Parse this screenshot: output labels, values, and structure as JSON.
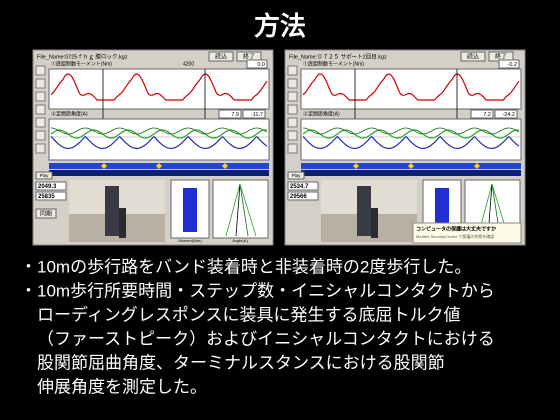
{
  "title": "方法",
  "screenshots": [
    {
      "file_name": "File_Name:0725ｆｈｇ 膝ロック.kgz",
      "load": "読込",
      "exit": "終了",
      "moment_label": "①底屈制動モーメント(Nm)",
      "moment_value": "4200",
      "moment_box": "0.0",
      "angle_label": "②足関節角度(A)",
      "angle_box_1": "7.9",
      "angle_box_2": "-11.7",
      "counter_1": "2049.3",
      "counter_2": "25835",
      "sync": "同期",
      "play": "Play",
      "moment_axis": "Moment(Nm)",
      "angle_axis": "Angle(A)"
    },
    {
      "file_name": "File_Name:０７２５ サポート2回目.kgz",
      "load": "読込",
      "exit": "終了",
      "moment_label": "①底屈制動モーメント(Nm)",
      "moment_box": "-0.2",
      "angle_label": "②足関節角度(A)",
      "angle_box_1": "7.2",
      "angle_box_2": "-24.2",
      "counter_1": "2534.7",
      "counter_2": "29566",
      "play": "Play",
      "popup_title": "コンピュータの保護は大丈夫ですか",
      "popup_text": "McAfee SecurityCenter で保護の状態を確認"
    }
  ],
  "bullets": [
    [
      "・10mの歩行路をバンド装着時と非装着時の2度歩行した。"
    ],
    [
      "・10m歩行所要時間・ステップ数・イニシャルコンタクトから",
      "ローディングレスポンスに装具に発生する底屈トルク値",
      "（ファーストピーク）およびイニシャルコンタクトにおける",
      "股関節屈曲角度、ターミナルスタンスにおける股関節",
      "伸展角度を測定した。"
    ]
  ]
}
